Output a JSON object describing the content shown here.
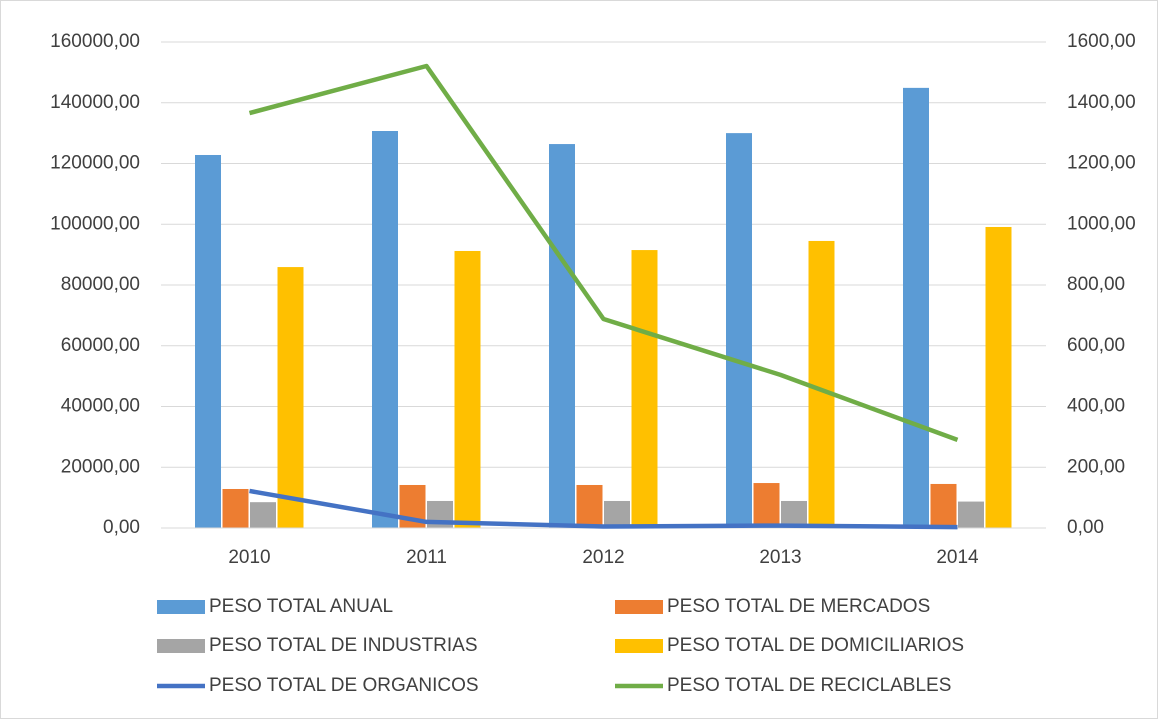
{
  "chart_data": {
    "type": "bar",
    "categories": [
      "2010",
      "2011",
      "2012",
      "2013",
      "2014"
    ],
    "series": [
      {
        "name": "PESO TOTAL ANUAL",
        "color": "#5b9bd5",
        "values": [
          122800,
          130700,
          126400,
          130000,
          144900
        ]
      },
      {
        "name": "PESO TOTAL DE MERCADOS",
        "color": "#ed7d31",
        "values": [
          12840,
          14160,
          14160,
          14800,
          14500
        ]
      },
      {
        "name": "PESO TOTAL DE INDUSTRIAS",
        "color": "#a5a5a5",
        "values": [
          8500,
          8900,
          8900,
          8900,
          8700
        ]
      },
      {
        "name": "PESO TOTAL DE DOMICILIARIOS",
        "color": "#ffc000",
        "values": [
          85900,
          91200,
          91500,
          94500,
          99100
        ]
      },
      {
        "name": "PESO TOTAL DE ORGANICOS",
        "color": "#4472c4",
        "type": "line",
        "axis": "y2",
        "values": [
          122,
          20,
          5,
          8,
          3
        ]
      },
      {
        "name": "PESO TOTAL DE RECICLABLES",
        "color": "#70ad47",
        "type": "line",
        "axis": "y2",
        "values": [
          1366,
          1521,
          688,
          504,
          290
        ]
      }
    ],
    "ylim": [
      0,
      160000
    ],
    "yticks": [
      {
        "value": 0,
        "label": "0,00"
      },
      {
        "value": 20000,
        "label": "20000,00"
      },
      {
        "value": 40000,
        "label": "40000,00"
      },
      {
        "value": 60000,
        "label": "60000,00"
      },
      {
        "value": 80000,
        "label": "80000,00"
      },
      {
        "value": 100000,
        "label": "100000,00"
      },
      {
        "value": 120000,
        "label": "120000,00"
      },
      {
        "value": 140000,
        "label": "140000,00"
      },
      {
        "value": 160000,
        "label": "160000,00"
      }
    ],
    "y2lim": [
      0,
      1600
    ],
    "y2ticks": [
      {
        "value": 0,
        "label": "0,00"
      },
      {
        "value": 200,
        "label": "200,00"
      },
      {
        "value": 400,
        "label": "400,00"
      },
      {
        "value": 600,
        "label": "600,00"
      },
      {
        "value": 800,
        "label": "800,00"
      },
      {
        "value": 1000,
        "label": "1000,00"
      },
      {
        "value": 1200,
        "label": "1200,00"
      },
      {
        "value": 1400,
        "label": "1400,00"
      },
      {
        "value": 1600,
        "label": "1600,00"
      }
    ],
    "grid": true,
    "legend": "bottom"
  }
}
